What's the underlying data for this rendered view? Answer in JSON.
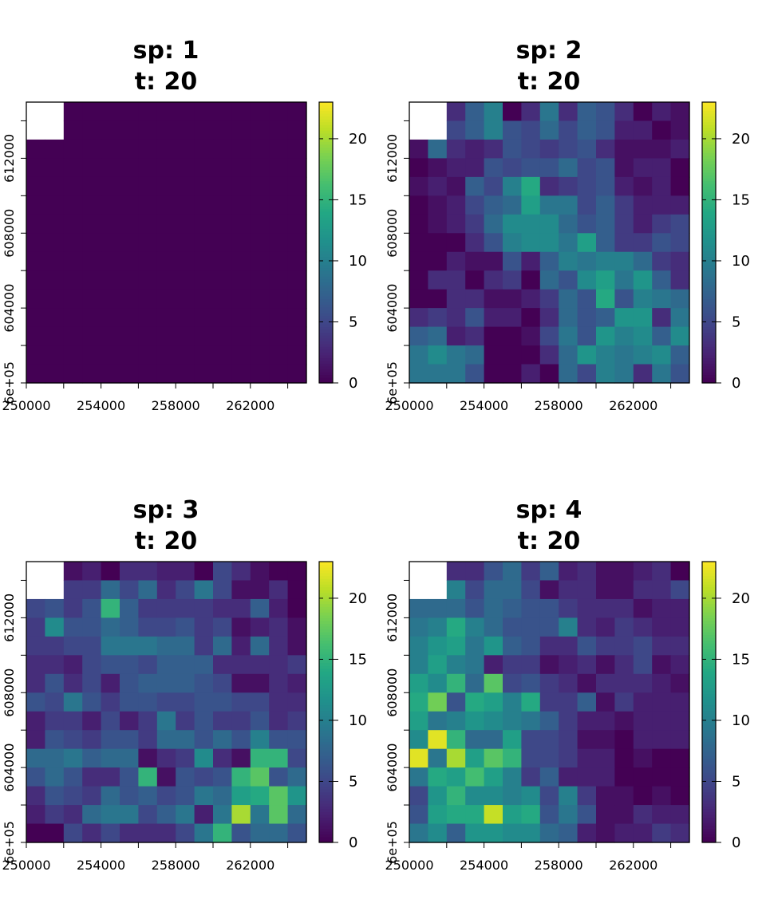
{
  "chart_data": [
    {
      "type": "heatmap",
      "title_line1": "sp: 1",
      "title_line2": "t: 20",
      "x_ticks": [
        "250000",
        "254000",
        "258000",
        "262000"
      ],
      "y_ticks": [
        "6e+05",
        "604000",
        "608000",
        "612000"
      ],
      "colorbar_ticks": [
        "0",
        "5",
        "10",
        "15",
        "20"
      ],
      "colorbar_range": [
        0,
        23
      ],
      "xlim": [
        250000,
        265000
      ],
      "ylim": [
        600000,
        615000
      ],
      "grid": [
        [
          null,
          null,
          0,
          0,
          0,
          0,
          0,
          0,
          0,
          0,
          0,
          0,
          0,
          0,
          0
        ],
        [
          null,
          null,
          0,
          0,
          0,
          0,
          0,
          0,
          0,
          0,
          0,
          0,
          0,
          0,
          0
        ],
        [
          0,
          0,
          0,
          0,
          0,
          0,
          0,
          0,
          0,
          0,
          0,
          0,
          0,
          0,
          0
        ],
        [
          0,
          0,
          0,
          0,
          0,
          0,
          0,
          0,
          0,
          0,
          0,
          0,
          0,
          0,
          0
        ],
        [
          0,
          0,
          0,
          0,
          0,
          0,
          0,
          0,
          0,
          0,
          0,
          0,
          0,
          0,
          0
        ],
        [
          0,
          0,
          0,
          0,
          0,
          0,
          0,
          0,
          0,
          0,
          0,
          0,
          0,
          0,
          0
        ],
        [
          0,
          0,
          0,
          0,
          0,
          0,
          0,
          0,
          0,
          0,
          0,
          0,
          0,
          0,
          0
        ],
        [
          0,
          0,
          0,
          0,
          0,
          0,
          0,
          0,
          0,
          0,
          0,
          0,
          0,
          0,
          0
        ],
        [
          0,
          0,
          0,
          0,
          0,
          0,
          0,
          0,
          0,
          0,
          0,
          0,
          0,
          0,
          0
        ],
        [
          0,
          0,
          0,
          0,
          0,
          0,
          0,
          0,
          0,
          0,
          0,
          0,
          0,
          0,
          0
        ],
        [
          0,
          0,
          0,
          0,
          0,
          0,
          0,
          0,
          0,
          0,
          0,
          0,
          0,
          0,
          0
        ],
        [
          0,
          0,
          0,
          0,
          0,
          0,
          0,
          0,
          0,
          0,
          0,
          0,
          0,
          0,
          0
        ],
        [
          0,
          0,
          0,
          0,
          0,
          0,
          0,
          0,
          0,
          0,
          0,
          0,
          0,
          0,
          0
        ],
        [
          0,
          0,
          0,
          0,
          0,
          0,
          0,
          0,
          0,
          0,
          0,
          0,
          0,
          0,
          0
        ],
        [
          0,
          0,
          0,
          0,
          0,
          0,
          0,
          0,
          0,
          0,
          0,
          0,
          0,
          0,
          0
        ]
      ]
    },
    {
      "type": "heatmap",
      "title_line1": "sp: 2",
      "title_line2": "t: 20",
      "x_ticks": [
        "250000",
        "254000",
        "258000",
        "262000"
      ],
      "y_ticks": [
        "6e+05",
        "604000",
        "608000",
        "612000"
      ],
      "colorbar_ticks": [
        "0",
        "5",
        "10",
        "15",
        "20"
      ],
      "colorbar_range": [
        0,
        23
      ],
      "xlim": [
        250000,
        265000
      ],
      "ylim": [
        600000,
        615000
      ],
      "grid": [
        [
          null,
          null,
          3,
          7,
          10,
          0,
          3,
          9,
          3,
          7,
          6,
          3,
          0,
          2,
          1
        ],
        [
          null,
          null,
          5,
          7,
          10,
          6,
          5,
          8,
          5,
          7,
          6,
          2,
          2,
          0,
          1
        ],
        [
          1,
          8,
          3,
          2,
          3,
          6,
          5,
          4,
          5,
          6,
          3,
          1,
          1,
          1,
          2
        ],
        [
          0,
          1,
          2,
          2,
          6,
          5,
          6,
          6,
          8,
          5,
          6,
          1,
          2,
          2,
          0
        ],
        [
          1,
          2,
          1,
          7,
          5,
          10,
          14,
          3,
          4,
          5,
          6,
          2,
          1,
          2,
          0
        ],
        [
          0,
          1,
          2,
          5,
          7,
          8,
          13,
          9,
          9,
          5,
          7,
          4,
          2,
          2,
          2
        ],
        [
          0,
          1,
          2,
          4,
          8,
          11,
          11,
          11,
          8,
          6,
          7,
          4,
          2,
          4,
          5
        ],
        [
          0,
          0,
          0,
          3,
          6,
          10,
          11,
          11,
          9,
          13,
          7,
          4,
          4,
          6,
          5
        ],
        [
          0,
          0,
          2,
          1,
          1,
          6,
          2,
          7,
          10,
          9,
          10,
          10,
          8,
          4,
          3
        ],
        [
          0,
          3,
          3,
          0,
          3,
          4,
          0,
          8,
          6,
          11,
          13,
          9,
          12,
          7,
          3
        ],
        [
          0,
          0,
          3,
          3,
          1,
          1,
          2,
          4,
          8,
          6,
          14,
          6,
          10,
          9,
          8
        ],
        [
          3,
          4,
          3,
          6,
          2,
          2,
          0,
          3,
          8,
          6,
          7,
          12,
          12,
          3,
          9
        ],
        [
          7,
          8,
          2,
          3,
          0,
          0,
          1,
          5,
          9,
          6,
          12,
          10,
          11,
          7,
          11
        ],
        [
          9,
          11,
          9,
          8,
          0,
          0,
          0,
          3,
          8,
          12,
          10,
          9,
          10,
          11,
          7
        ],
        [
          9,
          9,
          9,
          6,
          0,
          0,
          2,
          0,
          8,
          5,
          10,
          9,
          3,
          9,
          6
        ]
      ]
    },
    {
      "type": "heatmap",
      "title_line1": "sp: 3",
      "title_line2": "t: 20",
      "x_ticks": [
        "250000",
        "254000",
        "258000",
        "262000"
      ],
      "y_ticks": [
        "6e+05",
        "604000",
        "608000",
        "612000"
      ],
      "colorbar_ticks": [
        "0",
        "5",
        "10",
        "15",
        "20"
      ],
      "colorbar_range": [
        0,
        23
      ],
      "xlim": [
        250000,
        265000
      ],
      "ylim": [
        600000,
        615000
      ],
      "grid": [
        [
          null,
          null,
          1,
          2,
          0,
          3,
          3,
          2,
          2,
          0,
          5,
          3,
          1,
          0,
          0
        ],
        [
          null,
          null,
          4,
          4,
          8,
          5,
          8,
          3,
          5,
          9,
          5,
          1,
          1,
          3,
          0
        ],
        [
          5,
          6,
          4,
          6,
          15,
          7,
          4,
          4,
          4,
          4,
          3,
          3,
          7,
          2,
          0
        ],
        [
          4,
          11,
          6,
          6,
          8,
          7,
          5,
          5,
          6,
          4,
          5,
          1,
          2,
          3,
          1
        ],
        [
          4,
          4,
          5,
          5,
          9,
          9,
          9,
          8,
          8,
          4,
          8,
          2,
          8,
          3,
          1
        ],
        [
          3,
          3,
          2,
          5,
          6,
          6,
          5,
          7,
          7,
          7,
          3,
          3,
          3,
          3,
          4
        ],
        [
          3,
          6,
          3,
          5,
          2,
          6,
          7,
          7,
          7,
          6,
          5,
          1,
          1,
          3,
          2
        ],
        [
          6,
          5,
          9,
          6,
          4,
          6,
          6,
          5,
          5,
          6,
          6,
          5,
          5,
          3,
          3
        ],
        [
          2,
          4,
          4,
          2,
          5,
          2,
          4,
          9,
          4,
          6,
          4,
          4,
          6,
          3,
          4
        ],
        [
          2,
          6,
          5,
          4,
          6,
          6,
          4,
          8,
          8,
          6,
          8,
          6,
          10,
          6,
          6
        ],
        [
          8,
          8,
          9,
          7,
          8,
          8,
          1,
          3,
          4,
          11,
          3,
          1,
          15,
          15,
          5
        ],
        [
          6,
          8,
          6,
          3,
          3,
          6,
          15,
          1,
          6,
          5,
          6,
          15,
          17,
          6,
          8
        ],
        [
          3,
          6,
          5,
          4,
          8,
          6,
          7,
          5,
          6,
          9,
          8,
          13,
          14,
          17,
          12
        ],
        [
          2,
          4,
          3,
          8,
          9,
          9,
          5,
          7,
          9,
          2,
          9,
          20,
          9,
          17,
          8
        ],
        [
          0,
          0,
          5,
          3,
          5,
          3,
          3,
          3,
          5,
          9,
          15,
          6,
          8,
          8,
          6
        ]
      ]
    },
    {
      "type": "heatmap",
      "title_line1": "sp: 4",
      "title_line2": "t: 20",
      "x_ticks": [
        "250000",
        "254000",
        "258000",
        "262000"
      ],
      "y_ticks": [
        "6e+05",
        "604000",
        "608000",
        "612000"
      ],
      "colorbar_ticks": [
        "0",
        "5",
        "10",
        "15",
        "20"
      ],
      "colorbar_range": [
        0,
        23
      ],
      "xlim": [
        250000,
        265000
      ],
      "ylim": [
        600000,
        615000
      ],
      "grid": [
        [
          null,
          null,
          3,
          3,
          6,
          8,
          4,
          7,
          2,
          3,
          1,
          1,
          2,
          3,
          0
        ],
        [
          null,
          null,
          10,
          5,
          8,
          8,
          5,
          1,
          3,
          3,
          1,
          1,
          3,
          3,
          5
        ],
        [
          8,
          8,
          8,
          6,
          8,
          7,
          6,
          6,
          4,
          3,
          3,
          3,
          1,
          2,
          2
        ],
        [
          9,
          10,
          14,
          10,
          8,
          6,
          6,
          6,
          10,
          3,
          2,
          4,
          3,
          2,
          2
        ],
        [
          10,
          12,
          13,
          9,
          12,
          7,
          6,
          3,
          3,
          6,
          4,
          4,
          5,
          3,
          3
        ],
        [
          10,
          13,
          10,
          9,
          2,
          4,
          4,
          1,
          2,
          3,
          1,
          3,
          5,
          1,
          2
        ],
        [
          13,
          11,
          15,
          8,
          17,
          5,
          6,
          4,
          3,
          1,
          3,
          3,
          3,
          2,
          1
        ],
        [
          14,
          18,
          6,
          14,
          13,
          10,
          14,
          4,
          4,
          7,
          1,
          4,
          2,
          2,
          2
        ],
        [
          13,
          9,
          10,
          12,
          11,
          10,
          9,
          7,
          4,
          2,
          2,
          1,
          2,
          2,
          2
        ],
        [
          11,
          22,
          15,
          8,
          8,
          13,
          5,
          5,
          4,
          1,
          1,
          0,
          2,
          2,
          2
        ],
        [
          22,
          9,
          20,
          13,
          17,
          15,
          5,
          5,
          4,
          2,
          2,
          0,
          1,
          0,
          0
        ],
        [
          9,
          14,
          13,
          16,
          13,
          10,
          4,
          7,
          2,
          2,
          2,
          0,
          0,
          0,
          0
        ],
        [
          5,
          12,
          15,
          11,
          11,
          10,
          11,
          5,
          10,
          4,
          1,
          1,
          0,
          1,
          0
        ],
        [
          6,
          13,
          14,
          14,
          21,
          13,
          14,
          6,
          9,
          6,
          1,
          1,
          3,
          2,
          2
        ],
        [
          9,
          11,
          7,
          12,
          12,
          11,
          11,
          8,
          7,
          2,
          1,
          2,
          2,
          4,
          3
        ]
      ]
    }
  ]
}
